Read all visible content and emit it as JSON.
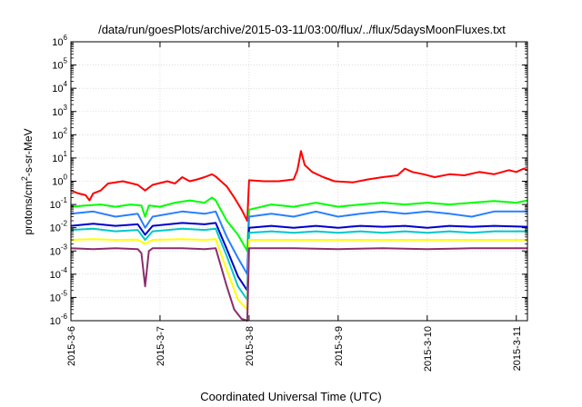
{
  "chart_data": {
    "type": "line",
    "title": "/data/run/goesPlots/archive/2015-03-11/03:00/flux/../flux/5daysMoonFluxes.txt",
    "xlabel": "Coordinated Universal Time (UTC)",
    "ylabel_parts": [
      "protons/cm",
      "2",
      "-s-sr-MeV"
    ],
    "x_axis": {
      "type": "date",
      "range": [
        "2015-03-06 00:00",
        "2015-03-11 03:00"
      ],
      "ticks": [
        "2015-3-6",
        "2015-3-7",
        "2015-3-8",
        "2015-3-9",
        "2015-3-10",
        "2015-3-11"
      ]
    },
    "y_axis": {
      "scale": "log",
      "range": [
        1e-06,
        1000000.0
      ],
      "tick_base": "10",
      "tick_exponents": [
        "-6",
        "-5",
        "-4",
        "-3",
        "-2",
        "-1",
        "0",
        "1",
        "2",
        "3",
        "4",
        "5",
        "6"
      ]
    },
    "grid": true,
    "legend": "none",
    "series": [
      {
        "color": "#ff0000",
        "points": [
          [
            "2015-03-06 00:00",
            0.4
          ],
          [
            "2015-03-06 02:00",
            0.3
          ],
          [
            "2015-03-06 04:00",
            0.25
          ],
          [
            "2015-03-06 05:00",
            0.15
          ],
          [
            "2015-03-06 06:00",
            0.3
          ],
          [
            "2015-03-06 08:00",
            0.4
          ],
          [
            "2015-03-06 10:00",
            0.8
          ],
          [
            "2015-03-06 14:00",
            1.0
          ],
          [
            "2015-03-06 18:00",
            0.7
          ],
          [
            "2015-03-06 20:00",
            0.4
          ],
          [
            "2015-03-06 22:00",
            0.7
          ],
          [
            "2015-03-07 02:00",
            1.0
          ],
          [
            "2015-03-07 04:00",
            0.8
          ],
          [
            "2015-03-07 06:00",
            1.5
          ],
          [
            "2015-03-07 08:00",
            1.0
          ],
          [
            "2015-03-07 10:00",
            1.2
          ],
          [
            "2015-03-07 12:00",
            1.5
          ],
          [
            "2015-03-07 14:00",
            2.0
          ],
          [
            "2015-03-07 15:00",
            1.6
          ],
          [
            "2015-03-07 18:00",
            0.6
          ],
          [
            "2015-03-07 20:00",
            0.2
          ],
          [
            "2015-03-07 22:00",
            0.06
          ],
          [
            "2015-03-07 23:30",
            0.02
          ],
          [
            "2015-03-08 00:00",
            1.1
          ],
          [
            "2015-03-08 04:00",
            1.0
          ],
          [
            "2015-03-08 08:00",
            1.0
          ],
          [
            "2015-03-08 12:00",
            1.2
          ],
          [
            "2015-03-08 13:00",
            3.0
          ],
          [
            "2015-03-08 14:00",
            20
          ],
          [
            "2015-03-08 15:00",
            5.0
          ],
          [
            "2015-03-08 17:00",
            2.5
          ],
          [
            "2015-03-08 20:00",
            1.5
          ],
          [
            "2015-03-08 23:00",
            1.0
          ],
          [
            "2015-03-09 04:00",
            0.9
          ],
          [
            "2015-03-09 08:00",
            1.2
          ],
          [
            "2015-03-09 12:00",
            1.5
          ],
          [
            "2015-03-09 16:00",
            1.8
          ],
          [
            "2015-03-09 18:00",
            3.5
          ],
          [
            "2015-03-09 20:00",
            2.5
          ],
          [
            "2015-03-09 23:00",
            2.0
          ],
          [
            "2015-03-10 02:00",
            1.5
          ],
          [
            "2015-03-10 06:00",
            2.0
          ],
          [
            "2015-03-10 10:00",
            1.8
          ],
          [
            "2015-03-10 14:00",
            2.5
          ],
          [
            "2015-03-10 18:00",
            2.0
          ],
          [
            "2015-03-10 22:00",
            3.0
          ],
          [
            "2015-03-11 00:00",
            2.5
          ],
          [
            "2015-03-11 02:00",
            3.5
          ],
          [
            "2015-03-11 03:00",
            3.0
          ]
        ]
      },
      {
        "color": "#00ff00",
        "points": [
          [
            "2015-03-06 00:00",
            0.08
          ],
          [
            "2015-03-06 04:00",
            0.09
          ],
          [
            "2015-03-06 08:00",
            0.1
          ],
          [
            "2015-03-06 12:00",
            0.08
          ],
          [
            "2015-03-06 16:00",
            0.1
          ],
          [
            "2015-03-06 19:00",
            0.09
          ],
          [
            "2015-03-06 20:00",
            0.03
          ],
          [
            "2015-03-06 21:00",
            0.09
          ],
          [
            "2015-03-07 00:00",
            0.08
          ],
          [
            "2015-03-07 04:00",
            0.12
          ],
          [
            "2015-03-07 08:00",
            0.15
          ],
          [
            "2015-03-07 12:00",
            0.12
          ],
          [
            "2015-03-07 14:00",
            0.2
          ],
          [
            "2015-03-07 15:00",
            0.15
          ],
          [
            "2015-03-07 18:00",
            0.02
          ],
          [
            "2015-03-07 21:00",
            0.005
          ],
          [
            "2015-03-07 23:30",
            0.001
          ],
          [
            "2015-03-08 00:00",
            0.06
          ],
          [
            "2015-03-08 06:00",
            0.1
          ],
          [
            "2015-03-08 12:00",
            0.08
          ],
          [
            "2015-03-08 18:00",
            0.12
          ],
          [
            "2015-03-09 00:00",
            0.08
          ],
          [
            "2015-03-09 06:00",
            0.1
          ],
          [
            "2015-03-09 12:00",
            0.12
          ],
          [
            "2015-03-09 18:00",
            0.1
          ],
          [
            "2015-03-10 00:00",
            0.12
          ],
          [
            "2015-03-10 06:00",
            0.1
          ],
          [
            "2015-03-10 12:00",
            0.12
          ],
          [
            "2015-03-10 18:00",
            0.14
          ],
          [
            "2015-03-11 00:00",
            0.12
          ],
          [
            "2015-03-11 03:00",
            0.15
          ]
        ]
      },
      {
        "color": "#2a7fff",
        "points": [
          [
            "2015-03-06 00:00",
            0.04
          ],
          [
            "2015-03-06 06:00",
            0.05
          ],
          [
            "2015-03-06 12:00",
            0.03
          ],
          [
            "2015-03-06 18:00",
            0.04
          ],
          [
            "2015-03-06 20:00",
            0.01
          ],
          [
            "2015-03-06 22:00",
            0.03
          ],
          [
            "2015-03-07 06:00",
            0.05
          ],
          [
            "2015-03-07 12:00",
            0.04
          ],
          [
            "2015-03-07 15:00",
            0.05
          ],
          [
            "2015-03-07 18:00",
            0.004
          ],
          [
            "2015-03-07 21:00",
            0.0005
          ],
          [
            "2015-03-07 23:30",
            0.0001
          ],
          [
            "2015-03-08 00:00",
            0.03
          ],
          [
            "2015-03-08 06:00",
            0.04
          ],
          [
            "2015-03-08 12:00",
            0.03
          ],
          [
            "2015-03-08 18:00",
            0.05
          ],
          [
            "2015-03-09 00:00",
            0.03
          ],
          [
            "2015-03-09 06:00",
            0.04
          ],
          [
            "2015-03-09 12:00",
            0.05
          ],
          [
            "2015-03-09 18:00",
            0.04
          ],
          [
            "2015-03-10 00:00",
            0.05
          ],
          [
            "2015-03-10 06:00",
            0.04
          ],
          [
            "2015-03-10 12:00",
            0.03
          ],
          [
            "2015-03-10 18:00",
            0.05
          ],
          [
            "2015-03-11 03:00",
            0.05
          ]
        ]
      },
      {
        "color": "#0000cc",
        "points": [
          [
            "2015-03-06 00:00",
            0.012
          ],
          [
            "2015-03-06 06:00",
            0.015
          ],
          [
            "2015-03-06 12:00",
            0.012
          ],
          [
            "2015-03-06 18:00",
            0.014
          ],
          [
            "2015-03-06 20:00",
            0.005
          ],
          [
            "2015-03-06 22:00",
            0.012
          ],
          [
            "2015-03-07 06:00",
            0.016
          ],
          [
            "2015-03-07 12:00",
            0.014
          ],
          [
            "2015-03-07 15:00",
            0.016
          ],
          [
            "2015-03-07 18:00",
            0.0012
          ],
          [
            "2015-03-07 21:00",
            8e-05
          ],
          [
            "2015-03-07 23:30",
            2e-05
          ],
          [
            "2015-03-08 00:00",
            0.01
          ],
          [
            "2015-03-08 06:00",
            0.012
          ],
          [
            "2015-03-08 12:00",
            0.01
          ],
          [
            "2015-03-08 18:00",
            0.012
          ],
          [
            "2015-03-09 00:00",
            0.01
          ],
          [
            "2015-03-09 06:00",
            0.012
          ],
          [
            "2015-03-09 12:00",
            0.011
          ],
          [
            "2015-03-09 18:00",
            0.012
          ],
          [
            "2015-03-10 00:00",
            0.01
          ],
          [
            "2015-03-10 06:00",
            0.012
          ],
          [
            "2015-03-10 12:00",
            0.011
          ],
          [
            "2015-03-10 18:00",
            0.012
          ],
          [
            "2015-03-11 03:00",
            0.011
          ]
        ]
      },
      {
        "color": "#00c8c8",
        "points": [
          [
            "2015-03-06 00:00",
            0.008
          ],
          [
            "2015-03-06 06:00",
            0.009
          ],
          [
            "2015-03-06 12:00",
            0.007
          ],
          [
            "2015-03-06 18:00",
            0.008
          ],
          [
            "2015-03-06 20:00",
            0.003
          ],
          [
            "2015-03-06 22:00",
            0.007
          ],
          [
            "2015-03-07 06:00",
            0.009
          ],
          [
            "2015-03-07 12:00",
            0.008
          ],
          [
            "2015-03-07 15:00",
            0.009
          ],
          [
            "2015-03-07 18:00",
            0.0006
          ],
          [
            "2015-03-07 21:00",
            3e-05
          ],
          [
            "2015-03-07 23:30",
            8e-06
          ],
          [
            "2015-03-08 00:00",
            0.006
          ],
          [
            "2015-03-08 06:00",
            0.007
          ],
          [
            "2015-03-08 12:00",
            0.006
          ],
          [
            "2015-03-08 18:00",
            0.007
          ],
          [
            "2015-03-09 00:00",
            0.006
          ],
          [
            "2015-03-09 06:00",
            0.007
          ],
          [
            "2015-03-09 12:00",
            0.006
          ],
          [
            "2015-03-09 18:00",
            0.007
          ],
          [
            "2015-03-10 00:00",
            0.006
          ],
          [
            "2015-03-10 06:00",
            0.007
          ],
          [
            "2015-03-10 12:00",
            0.006
          ],
          [
            "2015-03-10 18:00",
            0.007
          ],
          [
            "2015-03-11 03:00",
            0.007
          ]
        ]
      },
      {
        "color": "#ffff00",
        "points": [
          [
            "2015-03-06 00:00",
            0.003
          ],
          [
            "2015-03-06 06:00",
            0.0032
          ],
          [
            "2015-03-06 12:00",
            0.003
          ],
          [
            "2015-03-06 18:00",
            0.0031
          ],
          [
            "2015-03-06 20:00",
            0.002
          ],
          [
            "2015-03-06 22:00",
            0.003
          ],
          [
            "2015-03-07 06:00",
            0.0032
          ],
          [
            "2015-03-07 12:00",
            0.003
          ],
          [
            "2015-03-07 15:00",
            0.0032
          ],
          [
            "2015-03-07 18:00",
            0.00015
          ],
          [
            "2015-03-07 21:00",
            8e-06
          ],
          [
            "2015-03-07 23:30",
            3e-06
          ],
          [
            "2015-03-08 00:00",
            0.003
          ],
          [
            "2015-03-08 12:00",
            0.003
          ],
          [
            "2015-03-09 00:00",
            0.003
          ],
          [
            "2015-03-09 12:00",
            0.003
          ],
          [
            "2015-03-10 00:00",
            0.003
          ],
          [
            "2015-03-10 12:00",
            0.003
          ],
          [
            "2015-03-11 03:00",
            0.003
          ]
        ]
      },
      {
        "color": "#8b2e6e",
        "points": [
          [
            "2015-03-06 00:00",
            0.0013
          ],
          [
            "2015-03-06 06:00",
            0.0012
          ],
          [
            "2015-03-06 12:00",
            0.0013
          ],
          [
            "2015-03-06 18:00",
            0.0012
          ],
          [
            "2015-03-06 19:00",
            0.0008
          ],
          [
            "2015-03-06 20:00",
            3e-05
          ],
          [
            "2015-03-06 21:00",
            0.001
          ],
          [
            "2015-03-06 22:00",
            0.0013
          ],
          [
            "2015-03-07 06:00",
            0.0013
          ],
          [
            "2015-03-07 12:00",
            0.0012
          ],
          [
            "2015-03-07 15:00",
            0.0013
          ],
          [
            "2015-03-07 18:00",
            3e-05
          ],
          [
            "2015-03-07 20:00",
            3e-06
          ],
          [
            "2015-03-07 22:00",
            1.2e-06
          ],
          [
            "2015-03-07 23:30",
            1e-06
          ],
          [
            "2015-03-08 00:00",
            0.0013
          ],
          [
            "2015-03-08 12:00",
            0.0013
          ],
          [
            "2015-03-09 00:00",
            0.0012
          ],
          [
            "2015-03-09 12:00",
            0.0013
          ],
          [
            "2015-03-10 00:00",
            0.0012
          ],
          [
            "2015-03-10 12:00",
            0.0013
          ],
          [
            "2015-03-11 03:00",
            0.0013
          ]
        ]
      }
    ]
  }
}
